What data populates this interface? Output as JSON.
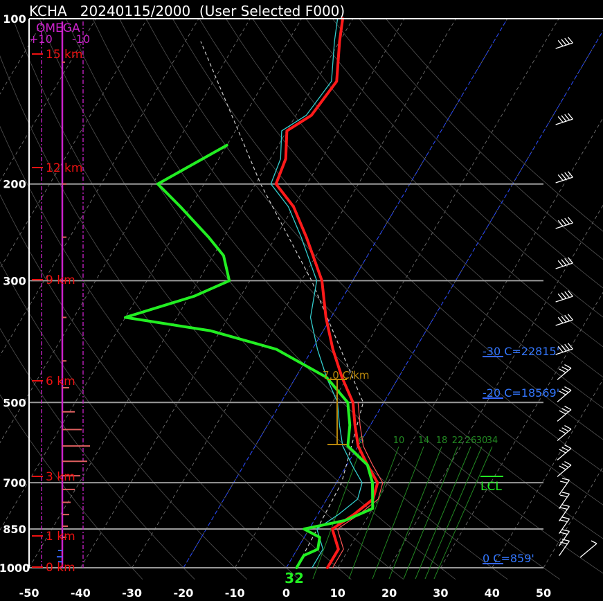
{
  "title": "KCHA   20240115/2000  (User Selected F000)",
  "colors": {
    "background": "#000000",
    "temperature": "#ff1a1a",
    "dewpoint": "#22ee22",
    "virtual_temp": "#ff5555",
    "wetbulb": "#33cccc",
    "omega": "#cc22cc",
    "height_labels": "#ee1111",
    "isotherm_freezing": "#2244ff",
    "mixing_ratio": "#228822",
    "lapse_rate": "#b8860b",
    "wind_barbs": "#ffffff"
  },
  "chart_data": {
    "type": "line",
    "subtype": "skew-t log-p",
    "x_axis": {
      "min": -50,
      "max": 50,
      "ticks": [
        "-50",
        "-40",
        "-30",
        "-20",
        "-10",
        "0",
        "10",
        "20",
        "30",
        "40",
        "50"
      ]
    },
    "y_axis": {
      "log_scale": true,
      "min": 100,
      "max": 1000,
      "ticks": [
        "100",
        "200",
        "300",
        "500",
        "700",
        "850",
        "1000"
      ]
    },
    "series": [
      {
        "kind": "temperature",
        "points": [
          [
            1000,
            8
          ],
          [
            925,
            8
          ],
          [
            850,
            4.5
          ],
          [
            800,
            7
          ],
          [
            750,
            9
          ],
          [
            700,
            8
          ],
          [
            650,
            4
          ],
          [
            600,
            0
          ],
          [
            550,
            -3
          ],
          [
            500,
            -6
          ],
          [
            450,
            -11
          ],
          [
            400,
            -16
          ],
          [
            350,
            -21
          ],
          [
            300,
            -26
          ],
          [
            250,
            -34
          ],
          [
            220,
            -40
          ],
          [
            200,
            -46
          ],
          [
            180,
            -47
          ],
          [
            160,
            -50
          ],
          [
            150,
            -47
          ],
          [
            130,
            -46
          ],
          [
            110,
            -50
          ],
          [
            100,
            -52
          ]
        ]
      },
      {
        "kind": "dewpoint",
        "points": [
          [
            1000,
            2
          ],
          [
            950,
            2
          ],
          [
            925,
            4
          ],
          [
            880,
            3
          ],
          [
            850,
            -1
          ],
          [
            820,
            6
          ],
          [
            780,
            10
          ],
          [
            700,
            7
          ],
          [
            650,
            4
          ],
          [
            600,
            -2
          ],
          [
            550,
            -4
          ],
          [
            500,
            -7
          ],
          [
            450,
            -14
          ],
          [
            400,
            -27
          ],
          [
            370,
            -42
          ],
          [
            350,
            -60
          ],
          [
            320,
            -49
          ],
          [
            300,
            -44
          ],
          [
            270,
            -48
          ],
          [
            250,
            -53
          ],
          [
            220,
            -62
          ],
          [
            200,
            -69
          ],
          [
            170,
            -60
          ]
        ]
      }
    ],
    "omega": {
      "labels": [
        "OMEGA",
        "+10",
        "-10"
      ]
    },
    "height_markers": [
      "15 km",
      "12 km",
      "9 km",
      "6 km",
      "3 km",
      "1 km",
      "0 km"
    ],
    "mixing_ratio_labels": [
      "6",
      "10",
      "14",
      "18",
      "22",
      "26",
      "30",
      "34"
    ],
    "lapse_rate": {
      "label": "7.0 C/km"
    },
    "levels": [
      {
        "label": "-30 C=22815'"
      },
      {
        "label": "-20 C=18569'"
      },
      {
        "label": "0 C=859'"
      }
    ],
    "lcl": {
      "label": "LCL"
    },
    "surface_value": "32"
  }
}
